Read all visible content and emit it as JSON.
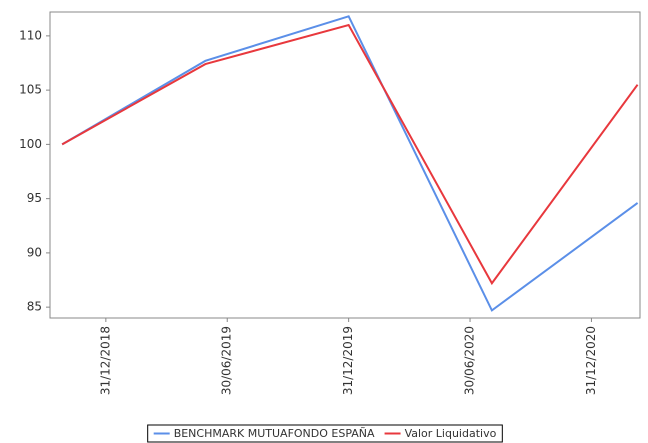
{
  "chart_data": {
    "type": "line",
    "x": [
      2018.82,
      2019.41,
      2020.0,
      2020.59,
      2021.19
    ],
    "xlim": [
      2018.77,
      2021.2
    ],
    "xticks": [
      {
        "value": 2019.0,
        "label": "31/12/2018"
      },
      {
        "value": 2019.5,
        "label": "30/06/2019"
      },
      {
        "value": 2020.0,
        "label": "31/12/2019"
      },
      {
        "value": 2020.5,
        "label": "30/06/2020"
      },
      {
        "value": 2021.0,
        "label": "31/12/2020"
      }
    ],
    "ylim": [
      84,
      112.2
    ],
    "yticks": [
      85,
      90,
      95,
      100,
      105,
      110
    ],
    "grid": false,
    "legend": "bottom",
    "series": [
      {
        "name": "BENCHMARK MUTUAFONDO ESPAÑA",
        "color": "#5b8fe8",
        "values": [
          100,
          107.7,
          111.8,
          84.7,
          94.6
        ]
      },
      {
        "name": "Valor Liquidativo",
        "color": "#e8383d",
        "values": [
          100,
          107.4,
          111.0,
          87.2,
          105.5
        ]
      }
    ]
  }
}
